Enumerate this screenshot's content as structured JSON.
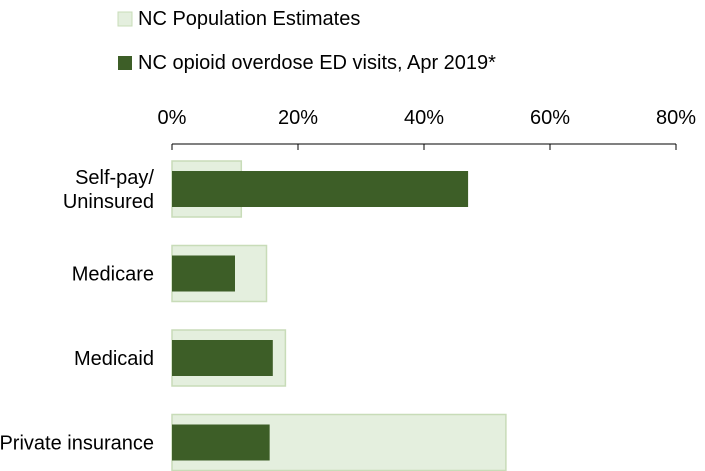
{
  "chart_data": {
    "type": "bar",
    "orientation": "horizontal",
    "title": "",
    "xlabel": "",
    "ylabel": "",
    "xlim": [
      0,
      80
    ],
    "x_ticks": [
      "0%",
      "20%",
      "40%",
      "60%",
      "80%"
    ],
    "x_tick_values": [
      0,
      20,
      40,
      60,
      80
    ],
    "x_axis_position": "top",
    "grid": false,
    "legend_position": "top",
    "categories": [
      "Self-pay/\nUninsured",
      "Medicare",
      "Medicaid",
      "Private insurance"
    ],
    "series": [
      {
        "name": "NC Population Estimates",
        "values": [
          11,
          15,
          18,
          53
        ],
        "color": "#e4efde",
        "border_color": "#c8dcb8"
      },
      {
        "name": "NC opioid overdose ED visits, Apr 2019*",
        "values": [
          47,
          10,
          16,
          15.5
        ],
        "color": "#3d5e27"
      }
    ]
  }
}
